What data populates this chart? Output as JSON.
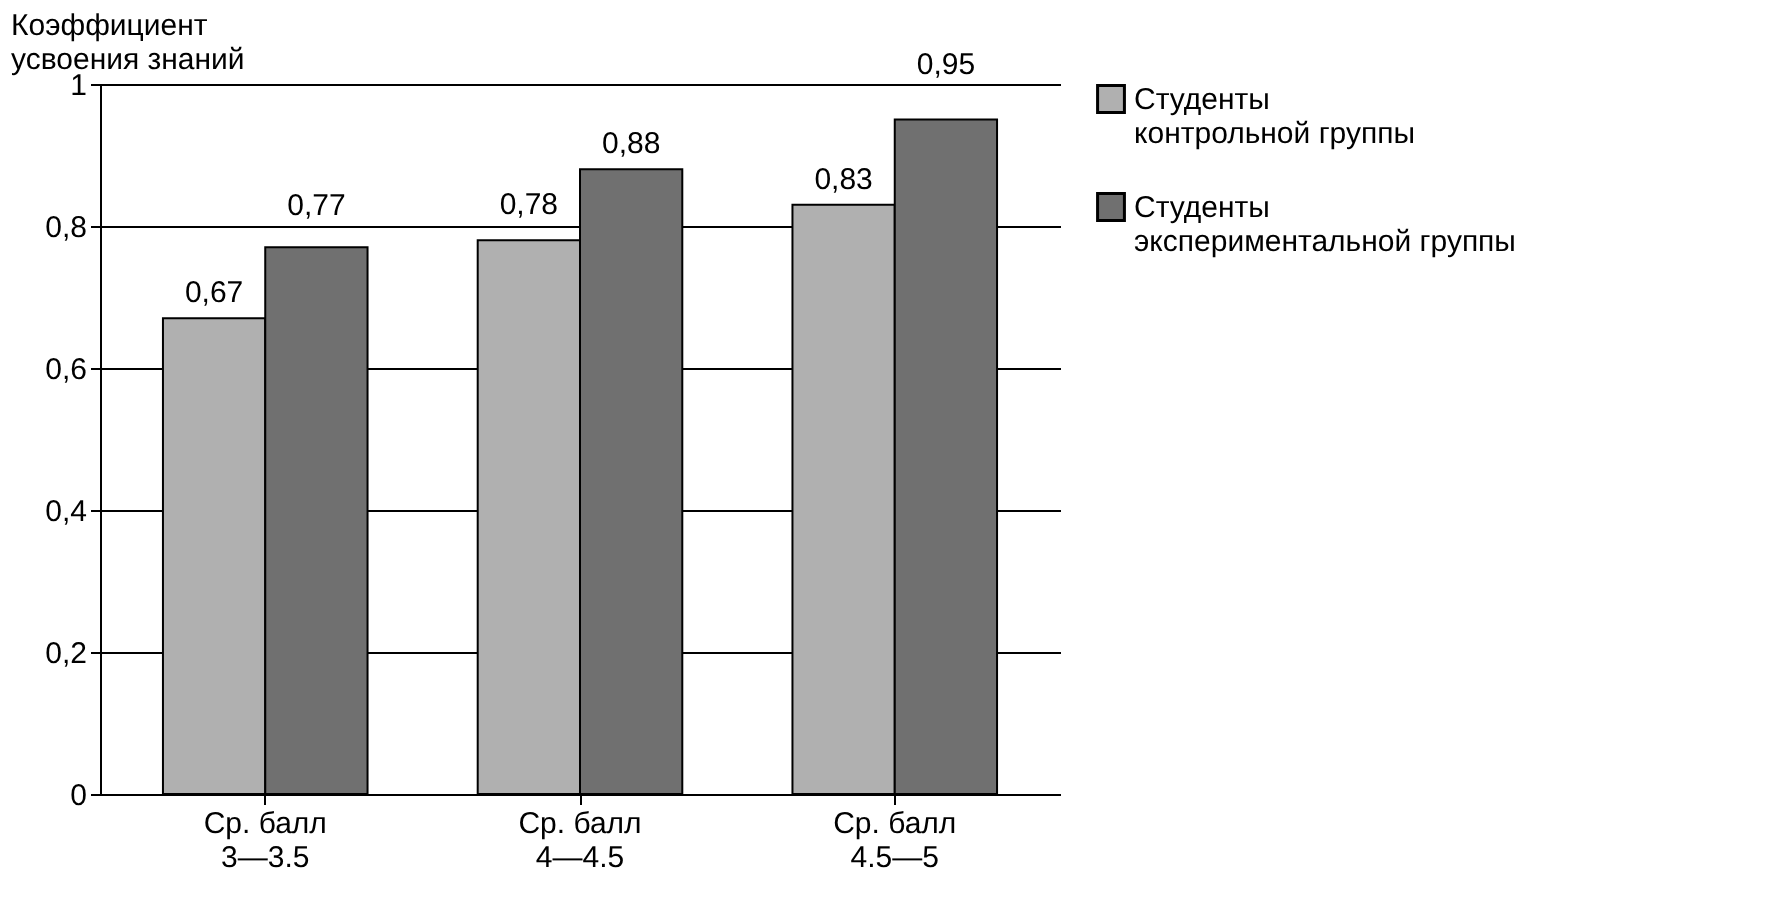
{
  "chart_data": {
    "type": "bar",
    "ylabel": "Коэффициент усвоения знаний",
    "categories": [
      "Ср. балл\n3—3.5",
      "Ср. балл\n4—4.5",
      "Ср. балл\n4.5—5"
    ],
    "series": [
      {
        "name": "Студенты\nконтрольной группы",
        "color": "#b0b0b0",
        "values": [
          0.67,
          0.78,
          0.83
        ],
        "value_labels": [
          "0,67",
          "0,78",
          "0,83"
        ]
      },
      {
        "name": "Студенты\nэкспериментальной группы",
        "color": "#707070",
        "values": [
          0.77,
          0.88,
          0.95
        ],
        "value_labels": [
          "0,77",
          "0,88",
          "0,95"
        ]
      }
    ],
    "ylim": [
      0,
      1
    ],
    "yticks": [
      0,
      {
        "value": 0.2,
        "label": "0,2"
      },
      {
        "value": 0.4,
        "label": "0,4"
      },
      {
        "value": 0.6,
        "label": "0,6"
      },
      {
        "value": 0.8,
        "label": "0,8"
      },
      1
    ],
    "grid": "y",
    "legend": "right"
  }
}
